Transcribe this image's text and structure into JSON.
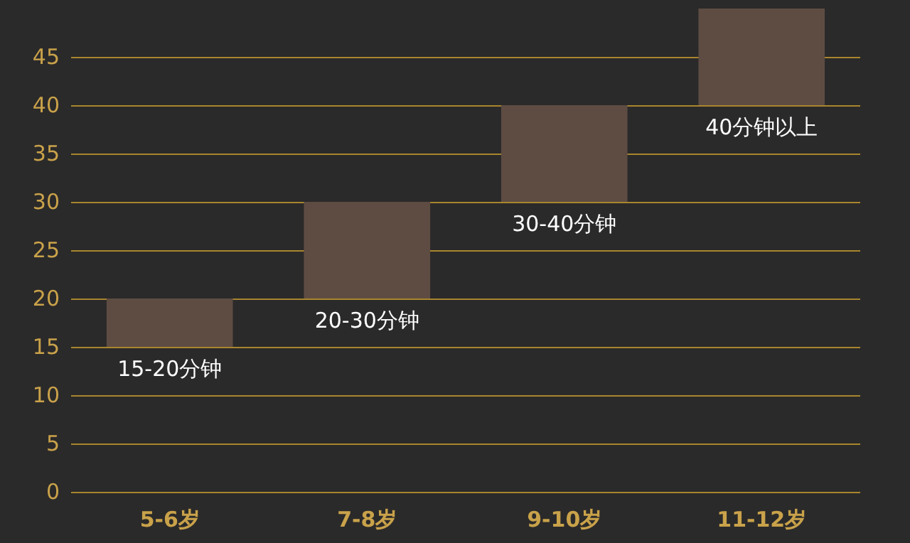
{
  "chart_data": {
    "type": "bar",
    "categories": [
      "5-6岁",
      "7-8岁",
      "9-10岁",
      "11-12岁"
    ],
    "values": [
      5,
      10,
      10,
      10
    ],
    "base": [
      15,
      20,
      30,
      40
    ],
    "annotations": [
      {
        "text": "15-20分钟",
        "x": "5-6岁",
        "y": 15
      },
      {
        "text": "20-30分钟",
        "x": "7-8岁",
        "y": 20
      },
      {
        "text": "30-40分钟",
        "x": "9-10岁",
        "y": 30
      },
      {
        "text": "40分钟以上",
        "x": "11-12岁",
        "y": 40
      }
    ],
    "color": "#5e4c43",
    "ylim": [
      0,
      50
    ],
    "yticks": [
      0,
      5,
      10,
      15,
      20,
      25,
      30,
      35,
      40,
      45
    ],
    "grid": "y"
  }
}
